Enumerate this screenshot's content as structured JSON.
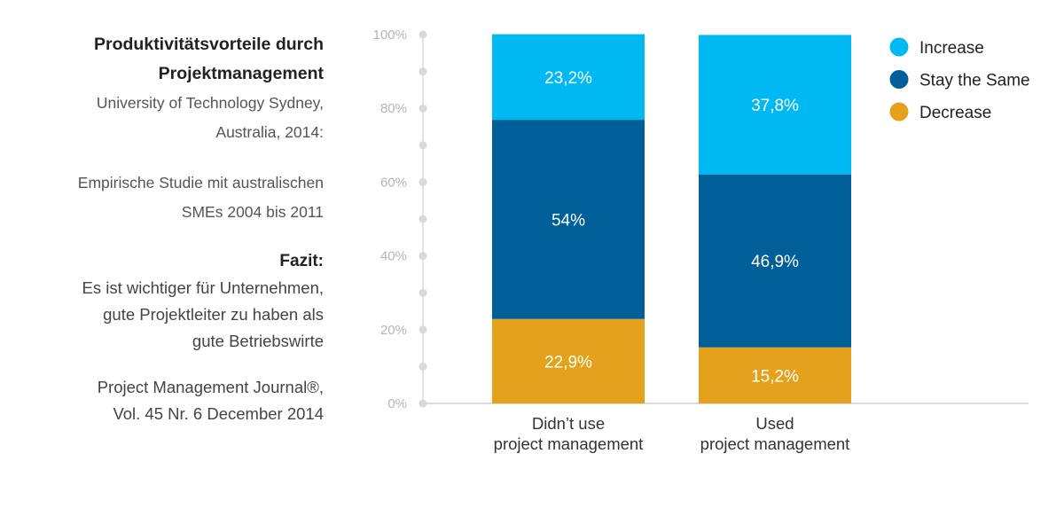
{
  "sidebar": {
    "title_lines": [
      "Produktivitätsvorteile durch",
      "Projektmanagement"
    ],
    "source_lines": [
      "University of Technology Sydney,",
      "Australia, 2014:"
    ],
    "study_lines": [
      "Empirische Studie mit australischen",
      "SMEs 2004 bis 2011"
    ],
    "fazit_heading": "Fazit:",
    "fazit_lines": [
      "Es ist wichtiger für Unternehmen,",
      "gute Projektleiter zu haben als",
      "gute Betriebswirte"
    ],
    "journal_lines": [
      "Project Management Journal®,",
      "Vol. 45 Nr. 6 December 2014"
    ]
  },
  "chart_data": {
    "type": "bar",
    "stacked": true,
    "categories": [
      [
        "Didn’t use",
        "project management"
      ],
      [
        "Used",
        "project management"
      ]
    ],
    "series": [
      {
        "name": "Decrease",
        "color": "#e4a11b",
        "values": [
          22.9,
          15.2
        ],
        "labels": [
          "22,9%",
          "15,2%"
        ]
      },
      {
        "name": "Stay the Same",
        "color": "#005e99",
        "values": [
          54.0,
          46.9
        ],
        "labels": [
          "54%",
          "46,9%"
        ]
      },
      {
        "name": "Increase",
        "color": "#00b9f2",
        "values": [
          23.2,
          37.8
        ],
        "labels": [
          "23,2%",
          "37,8%"
        ]
      }
    ],
    "legend_order": [
      "Increase",
      "Stay the Same",
      "Decrease"
    ],
    "ylim": [
      0,
      100
    ],
    "yticks": [
      0,
      20,
      40,
      60,
      80,
      100
    ],
    "ytick_labels": [
      "0%",
      "20%",
      "40%",
      "60%",
      "80%",
      "100%"
    ],
    "legend_position": "top-right",
    "title": "",
    "xlabel": "",
    "ylabel": ""
  }
}
